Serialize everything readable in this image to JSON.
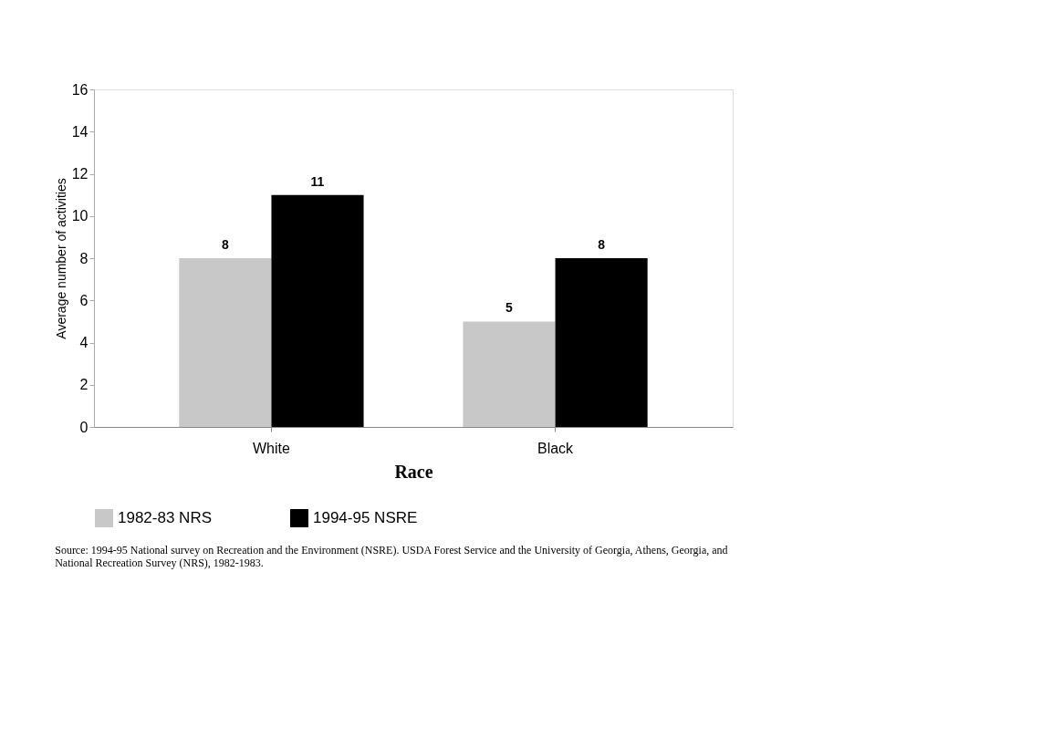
{
  "chart_data": {
    "type": "bar",
    "categories": [
      "White",
      "Black"
    ],
    "xlabel": "Race",
    "ylabel": "Average number of activities",
    "series": [
      {
        "name": "1982-83  NRS",
        "color": "#c8c8c8",
        "values": [
          8,
          5
        ]
      },
      {
        "name": "1994-95  NSRE",
        "color": "#000000",
        "values": [
          11,
          8
        ]
      }
    ],
    "ylim": [
      0,
      16
    ],
    "yticks": [
      0,
      2,
      4,
      6,
      8,
      10,
      12,
      14,
      16
    ],
    "grid": false,
    "legend": "bottom",
    "data_labels": true,
    "annotations": [
      "Source: 1994-95 National survey on Recreation and the Environment (NSRE). USDA Forest Service and the University of Georgia, Athens, Georgia, and National Recreation Survey (NRS), 1982-1983."
    ]
  }
}
